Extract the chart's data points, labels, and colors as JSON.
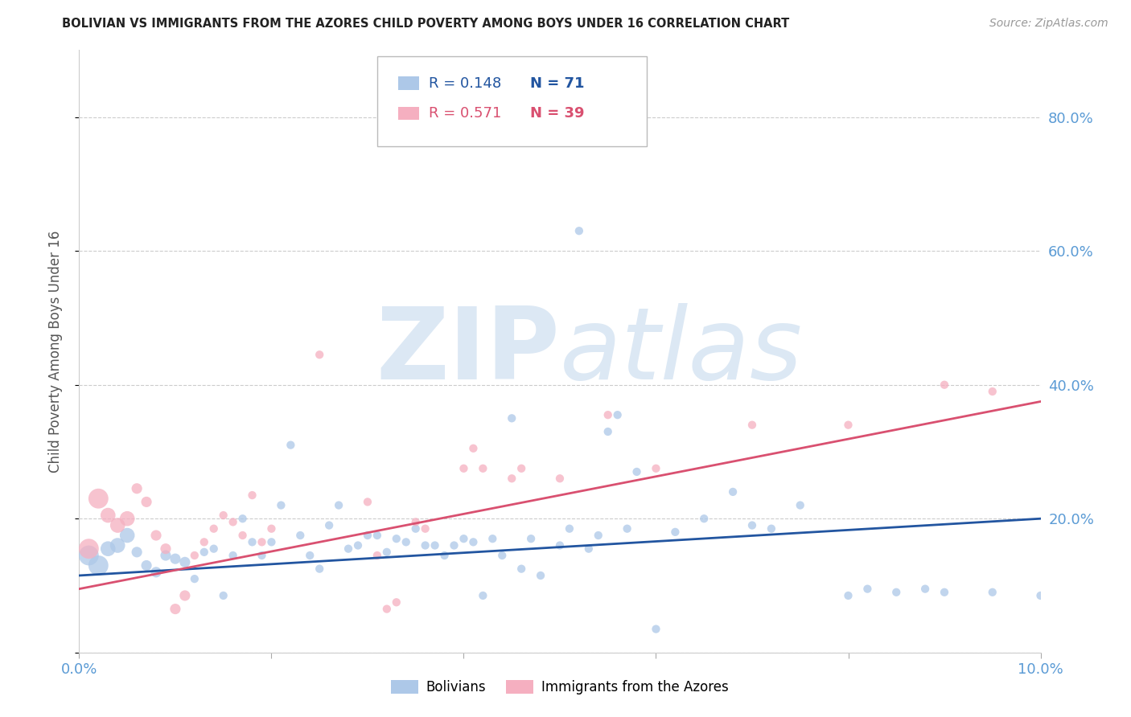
{
  "title": "BOLIVIAN VS IMMIGRANTS FROM THE AZORES CHILD POVERTY AMONG BOYS UNDER 16 CORRELATION CHART",
  "source": "Source: ZipAtlas.com",
  "ylabel": "Child Poverty Among Boys Under 16",
  "xlim": [
    0.0,
    0.1
  ],
  "ylim": [
    0.0,
    0.9
  ],
  "yticks": [
    0.0,
    0.2,
    0.4,
    0.6,
    0.8
  ],
  "ytick_labels": [
    "",
    "20.0%",
    "40.0%",
    "60.0%",
    "80.0%"
  ],
  "xticks": [
    0.0,
    0.02,
    0.04,
    0.06,
    0.08,
    0.1
  ],
  "xtick_labels": [
    "0.0%",
    "",
    "",
    "",
    "",
    "10.0%"
  ],
  "blue_R": "R = 0.148",
  "blue_N": "N = 71",
  "pink_R": "R = 0.571",
  "pink_N": "N = 39",
  "blue_color": "#adc8e8",
  "pink_color": "#f5afc0",
  "blue_line_color": "#2255a0",
  "pink_line_color": "#d95070",
  "title_color": "#222222",
  "axis_label_color": "#5b9bd5",
  "watermark_color": "#dce8f4",
  "watermark_zip": "ZIP",
  "watermark_atlas": "atlas",
  "legend_label_blue": "Bolivians",
  "legend_label_pink": "Immigrants from the Azores",
  "blue_scatter": [
    [
      0.001,
      0.145
    ],
    [
      0.002,
      0.13
    ],
    [
      0.003,
      0.155
    ],
    [
      0.004,
      0.16
    ],
    [
      0.005,
      0.175
    ],
    [
      0.006,
      0.15
    ],
    [
      0.007,
      0.13
    ],
    [
      0.008,
      0.12
    ],
    [
      0.009,
      0.145
    ],
    [
      0.01,
      0.14
    ],
    [
      0.011,
      0.135
    ],
    [
      0.012,
      0.11
    ],
    [
      0.013,
      0.15
    ],
    [
      0.014,
      0.155
    ],
    [
      0.015,
      0.085
    ],
    [
      0.016,
      0.145
    ],
    [
      0.017,
      0.2
    ],
    [
      0.018,
      0.165
    ],
    [
      0.019,
      0.145
    ],
    [
      0.02,
      0.165
    ],
    [
      0.021,
      0.22
    ],
    [
      0.022,
      0.31
    ],
    [
      0.023,
      0.175
    ],
    [
      0.024,
      0.145
    ],
    [
      0.025,
      0.125
    ],
    [
      0.026,
      0.19
    ],
    [
      0.027,
      0.22
    ],
    [
      0.028,
      0.155
    ],
    [
      0.029,
      0.16
    ],
    [
      0.03,
      0.175
    ],
    [
      0.031,
      0.175
    ],
    [
      0.032,
      0.15
    ],
    [
      0.033,
      0.17
    ],
    [
      0.034,
      0.165
    ],
    [
      0.035,
      0.185
    ],
    [
      0.036,
      0.16
    ],
    [
      0.037,
      0.16
    ],
    [
      0.038,
      0.145
    ],
    [
      0.039,
      0.16
    ],
    [
      0.04,
      0.17
    ],
    [
      0.041,
      0.165
    ],
    [
      0.042,
      0.085
    ],
    [
      0.043,
      0.17
    ],
    [
      0.044,
      0.145
    ],
    [
      0.045,
      0.35
    ],
    [
      0.046,
      0.125
    ],
    [
      0.047,
      0.17
    ],
    [
      0.048,
      0.115
    ],
    [
      0.05,
      0.16
    ],
    [
      0.051,
      0.185
    ],
    [
      0.052,
      0.63
    ],
    [
      0.053,
      0.155
    ],
    [
      0.054,
      0.175
    ],
    [
      0.055,
      0.33
    ],
    [
      0.056,
      0.355
    ],
    [
      0.057,
      0.185
    ],
    [
      0.058,
      0.27
    ],
    [
      0.06,
      0.035
    ],
    [
      0.062,
      0.18
    ],
    [
      0.065,
      0.2
    ],
    [
      0.068,
      0.24
    ],
    [
      0.07,
      0.19
    ],
    [
      0.072,
      0.185
    ],
    [
      0.075,
      0.22
    ],
    [
      0.08,
      0.085
    ],
    [
      0.082,
      0.095
    ],
    [
      0.085,
      0.09
    ],
    [
      0.088,
      0.095
    ],
    [
      0.09,
      0.09
    ],
    [
      0.095,
      0.09
    ],
    [
      0.1,
      0.085
    ]
  ],
  "pink_scatter": [
    [
      0.001,
      0.155
    ],
    [
      0.002,
      0.23
    ],
    [
      0.003,
      0.205
    ],
    [
      0.004,
      0.19
    ],
    [
      0.005,
      0.2
    ],
    [
      0.006,
      0.245
    ],
    [
      0.007,
      0.225
    ],
    [
      0.008,
      0.175
    ],
    [
      0.009,
      0.155
    ],
    [
      0.01,
      0.065
    ],
    [
      0.011,
      0.085
    ],
    [
      0.012,
      0.145
    ],
    [
      0.013,
      0.165
    ],
    [
      0.014,
      0.185
    ],
    [
      0.015,
      0.205
    ],
    [
      0.016,
      0.195
    ],
    [
      0.017,
      0.175
    ],
    [
      0.018,
      0.235
    ],
    [
      0.019,
      0.165
    ],
    [
      0.02,
      0.185
    ],
    [
      0.025,
      0.445
    ],
    [
      0.03,
      0.225
    ],
    [
      0.031,
      0.145
    ],
    [
      0.032,
      0.065
    ],
    [
      0.033,
      0.075
    ],
    [
      0.035,
      0.195
    ],
    [
      0.036,
      0.185
    ],
    [
      0.04,
      0.275
    ],
    [
      0.041,
      0.305
    ],
    [
      0.042,
      0.275
    ],
    [
      0.045,
      0.26
    ],
    [
      0.046,
      0.275
    ],
    [
      0.05,
      0.26
    ],
    [
      0.055,
      0.355
    ],
    [
      0.06,
      0.275
    ],
    [
      0.07,
      0.34
    ],
    [
      0.08,
      0.34
    ],
    [
      0.09,
      0.4
    ],
    [
      0.095,
      0.39
    ]
  ],
  "blue_line_x": [
    0.0,
    0.1
  ],
  "blue_line_y": [
    0.115,
    0.2
  ],
  "pink_line_x": [
    0.0,
    0.1
  ],
  "pink_line_y": [
    0.095,
    0.375
  ]
}
